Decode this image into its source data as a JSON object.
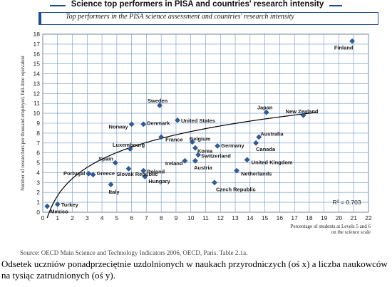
{
  "header": {
    "title": "Science top performers in PISA and countries' research intensity",
    "subtitle": "Top performers in the PISA science assessment and countries' research intensity"
  },
  "chart_data": {
    "type": "scatter",
    "title": "Science top performers in PISA and countries' research intensity",
    "subtitle": "Top performers in the PISA science assessment and countries' research intensity",
    "xlabel": "Percentage of students at Levels 5 and 6 on the science scale",
    "xlabel_lines": [
      "Percentage of students at Levels 5 and 6",
      "on the science scale"
    ],
    "ylabel": "Number of researchers per thousand employed, full-time equivalent",
    "xlim": [
      0,
      22
    ],
    "ylim": [
      0,
      18
    ],
    "xticks": [
      0,
      1,
      2,
      3,
      4,
      5,
      6,
      7,
      8,
      9,
      10,
      11,
      12,
      13,
      14,
      15,
      16,
      17,
      18,
      19,
      20,
      21,
      22
    ],
    "yticks": [
      0,
      1,
      2,
      3,
      4,
      5,
      6,
      7,
      8,
      9,
      10,
      11,
      12,
      13,
      14,
      15,
      16,
      17,
      18
    ],
    "grid": true,
    "marker_color": "#2f5d9b",
    "trend_color": "#000000",
    "r_squared": "R² = 0.703",
    "points": [
      {
        "label": "Finland",
        "x": 20.9,
        "y": 17.3
      },
      {
        "label": "New Zealand",
        "x": 17.6,
        "y": 9.8
      },
      {
        "label": "Japan",
        "x": 15.1,
        "y": 10.1
      },
      {
        "label": "Australia",
        "x": 14.6,
        "y": 7.6
      },
      {
        "label": "Canada",
        "x": 14.4,
        "y": 7.0
      },
      {
        "label": "United Kingdom",
        "x": 13.8,
        "y": 5.3
      },
      {
        "label": "Netherlands",
        "x": 13.1,
        "y": 4.2
      },
      {
        "label": "Czech Republic",
        "x": 11.6,
        "y": 3.0
      },
      {
        "label": "Germany",
        "x": 11.8,
        "y": 6.7
      },
      {
        "label": "Switzerland",
        "x": 10.5,
        "y": 5.8
      },
      {
        "label": "Austria",
        "x": 10.3,
        "y": 5.2
      },
      {
        "label": "Korea",
        "x": 10.3,
        "y": 6.5
      },
      {
        "label": "Belgium",
        "x": 10.1,
        "y": 7.1
      },
      {
        "label": "Ireland",
        "x": 9.6,
        "y": 5.2
      },
      {
        "label": "United States",
        "x": 9.1,
        "y": 9.3
      },
      {
        "label": "Sweden",
        "x": 7.9,
        "y": 10.8
      },
      {
        "label": "France",
        "x": 8.0,
        "y": 7.6
      },
      {
        "label": "Denmark",
        "x": 6.8,
        "y": 8.9
      },
      {
        "label": "Norway",
        "x": 6.0,
        "y": 8.9
      },
      {
        "label": "Luxembourg",
        "x": 5.9,
        "y": 6.4
      },
      {
        "label": "Poland",
        "x": 6.8,
        "y": 4.2
      },
      {
        "label": "Hungary",
        "x": 6.9,
        "y": 3.6
      },
      {
        "label": "Slovak Republic",
        "x": 5.8,
        "y": 4.4
      },
      {
        "label": "Spain",
        "x": 4.9,
        "y": 5.0
      },
      {
        "label": "Greece",
        "x": 3.4,
        "y": 3.8
      },
      {
        "label": "Portugal",
        "x": 3.1,
        "y": 3.9
      },
      {
        "label": "Italy",
        "x": 4.6,
        "y": 2.8
      },
      {
        "label": "Turkey",
        "x": 1.0,
        "y": 0.8
      },
      {
        "label": "Mexico",
        "x": 0.3,
        "y": 0.6
      }
    ]
  },
  "source": "Source: OECD Main Science and Technology Indicators 2006, OECD, Paris. Table 2.1a.",
  "caption": "Odsetek uczniów ponadprzeciętnie uzdolnionych w naukach przyrodniczych (oś x) a liczba naukowców na tysiąc zatrudnionych (oś y)."
}
